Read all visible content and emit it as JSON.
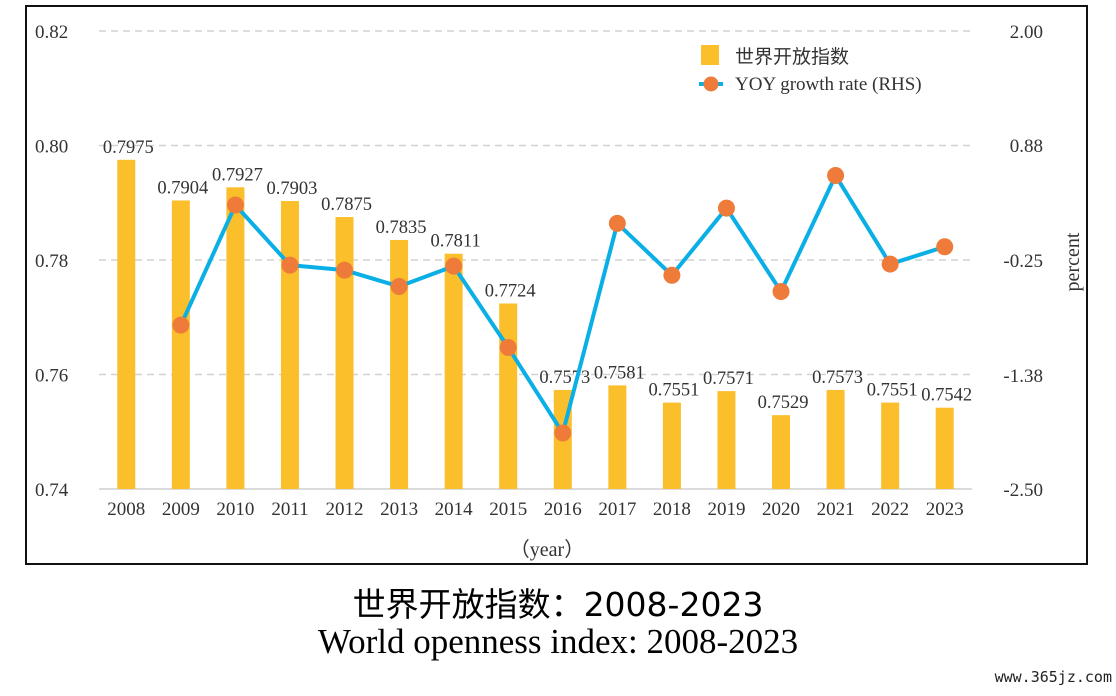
{
  "chart_data": {
    "type": "bar",
    "categories": [
      "2008",
      "2009",
      "2010",
      "2011",
      "2012",
      "2013",
      "2014",
      "2015",
      "2016",
      "2017",
      "2018",
      "2019",
      "2020",
      "2021",
      "2022",
      "2023"
    ],
    "series": [
      {
        "name": "世界开放指数",
        "type": "bar",
        "axis": "left",
        "color": "#FBBF2C",
        "values": [
          0.7975,
          0.7904,
          0.7927,
          0.7903,
          0.7875,
          0.7835,
          0.7811,
          0.7724,
          0.7573,
          0.7581,
          0.7551,
          0.7571,
          0.7529,
          0.7573,
          0.7551,
          0.7542
        ],
        "labels": [
          "0.7975",
          "0.7904",
          "0.7927",
          "0.7903",
          "0.7875",
          "0.7835",
          "0.7811",
          "0.7724",
          "0.7573",
          "0.7581",
          "0.7551",
          "0.7571",
          "0.7529",
          "0.7573",
          "0.7551",
          "0.7542"
        ]
      },
      {
        "name": "YOY growth rate (RHS)",
        "type": "line",
        "axis": "right",
        "color": "#0AAFE6",
        "marker_color": "#EE7B3A",
        "values": [
          null,
          -0.89,
          0.29,
          -0.3,
          -0.35,
          -0.51,
          -0.31,
          -1.11,
          -1.95,
          0.11,
          -0.4,
          0.26,
          -0.56,
          0.58,
          -0.29,
          -0.12
        ]
      }
    ],
    "y_left": {
      "ylim": [
        0.74,
        0.82
      ],
      "ticks": [
        "0.74",
        "0.76",
        "0.78",
        "0.80",
        "0.82"
      ]
    },
    "y_right": {
      "ylim": [
        -2.5,
        2.0
      ],
      "ticks": [
        "-2.50",
        "-1.38",
        "-0.25",
        "0.88",
        "2.00"
      ],
      "label": "percent"
    },
    "xlabel": "（year）",
    "grid": true,
    "legend": "top-right"
  },
  "captions": {
    "cn": "世界开放指数：2008-2023",
    "en": "World openness index: 2008-2023"
  },
  "watermark": "www.365jz.com"
}
